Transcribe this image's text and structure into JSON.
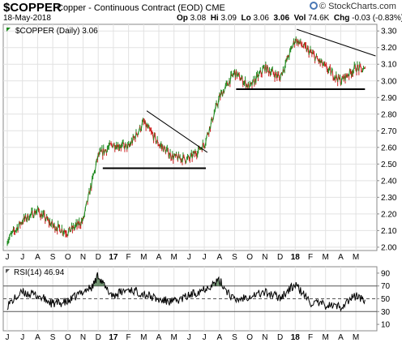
{
  "header": {
    "symbol": "$COPPER",
    "long_name": "Copper - Continuous Contract (EOD)",
    "exchange": "CME",
    "date": "18-May-2018",
    "open_label": "Op",
    "open": "3.08",
    "high_label": "Hi",
    "high": "3.09",
    "low_label": "Lo",
    "low": "3.06",
    "close": "3.06",
    "vol_label": "Vol",
    "volume": "74.6K",
    "chg_label": "Chg",
    "change": "-0.03 (-0.83%)",
    "change_arrow": "▼",
    "watermark": "© StockCharts.com"
  },
  "chart_data": [
    {
      "type": "line",
      "legend": "$COPPER (Daily) 3.06",
      "y_ticks": [
        2.0,
        2.1,
        2.2,
        2.3,
        2.4,
        2.5,
        2.6,
        2.7,
        2.8,
        2.9,
        3.0,
        3.1,
        3.2,
        3.3
      ],
      "ylim": [
        1.98,
        3.34
      ],
      "x_labels": [
        "J",
        "J",
        "A",
        "S",
        "O",
        "N",
        "D",
        "17",
        "F",
        "M",
        "A",
        "M",
        "J",
        "J",
        "A",
        "S",
        "O",
        "N",
        "D",
        "18",
        "F",
        "M",
        "A",
        "M"
      ],
      "bold_x_labels": [
        "17",
        "18"
      ],
      "months": [
        0,
        1,
        2,
        3,
        4,
        5,
        6,
        7,
        8,
        9,
        10,
        11,
        12,
        13,
        14,
        15,
        16,
        17,
        18,
        19,
        20,
        21,
        22,
        23,
        23.6
      ],
      "values": [
        2.04,
        2.16,
        2.22,
        2.13,
        2.09,
        2.16,
        2.55,
        2.62,
        2.6,
        2.75,
        2.62,
        2.54,
        2.53,
        2.62,
        2.9,
        3.05,
        2.96,
        3.08,
        3.02,
        3.25,
        3.17,
        3.08,
        3.0,
        3.08,
        3.06
      ],
      "up_color": "#1f8a1f",
      "down_color": "#cc1f1f",
      "annotations": {
        "support_lines": [
          {
            "from_month": 6.3,
            "to_month": 13.1,
            "value": 2.475
          },
          {
            "from_month": 15.1,
            "to_month": 23.6,
            "value": 2.95
          }
        ],
        "trend_lines": [
          {
            "from_month": 9.2,
            "from_value": 2.82,
            "to_month": 13.2,
            "to_value": 2.57
          },
          {
            "from_month": 19.1,
            "from_value": 3.31,
            "to_month": 24.3,
            "to_value": 3.15
          }
        ]
      }
    },
    {
      "type": "line",
      "legend": "RSI(14) 46.94",
      "y_ticks": [
        10,
        30,
        50,
        70,
        90
      ],
      "ylim": [
        0,
        100
      ],
      "reference_lines": [
        30,
        50,
        70
      ],
      "months": [
        0,
        1,
        2,
        3,
        4,
        5,
        5.6,
        6,
        6.5,
        7,
        8,
        9,
        10,
        11,
        12,
        13,
        14,
        15,
        16,
        17,
        18,
        19,
        20,
        21,
        22,
        23,
        23.6
      ],
      "values": [
        40,
        60,
        55,
        42,
        45,
        62,
        68,
        88,
        65,
        55,
        65,
        58,
        48,
        45,
        55,
        66,
        78,
        47,
        55,
        60,
        52,
        72,
        44,
        40,
        38,
        55,
        47
      ],
      "overbought_fill": "#3a6b3a",
      "oversold_fill": "#b03030"
    }
  ]
}
